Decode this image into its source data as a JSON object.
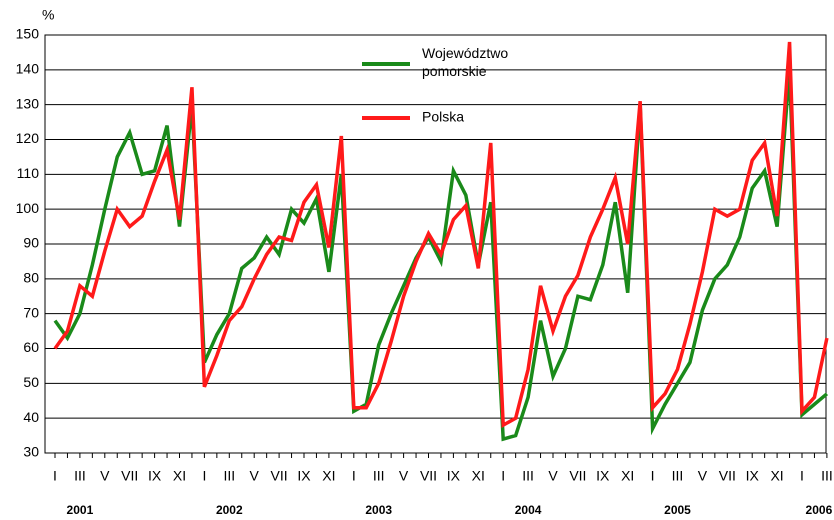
{
  "chart_data": {
    "type": "line",
    "y_unit": "%",
    "categories": [
      "I",
      null,
      "III",
      null,
      "V",
      null,
      "VII",
      null,
      "IX",
      null,
      "XI",
      null,
      "I",
      null,
      "III",
      null,
      "V",
      null,
      "VII",
      null,
      "IX",
      null,
      "XI",
      null,
      "I",
      null,
      "III",
      null,
      "V",
      null,
      "VII",
      null,
      "IX",
      null,
      "XI",
      null,
      "I",
      null,
      "III",
      null,
      "V",
      null,
      "VII",
      null,
      "IX",
      null,
      "XI",
      null,
      "I",
      null,
      "III",
      null,
      "V",
      null,
      "VII",
      null,
      "IX",
      null,
      "XI",
      null,
      "I",
      null,
      "III"
    ],
    "years": [
      "2001",
      "2002",
      "2003",
      "2004",
      "2005",
      "2006"
    ],
    "series": [
      {
        "name": "Województwo\npomorskie",
        "color": "#1a8a1a",
        "values": [
          68,
          63,
          70,
          84,
          100,
          115,
          122,
          110,
          111,
          124,
          95,
          130,
          56,
          64,
          70,
          83,
          86,
          92,
          87,
          100,
          96,
          103,
          82,
          110,
          42,
          44,
          61,
          70,
          78,
          86,
          92,
          85,
          111,
          104,
          84,
          102,
          34,
          35,
          46,
          68,
          52,
          60,
          75,
          74,
          84,
          102,
          76,
          130,
          37,
          44,
          50,
          56,
          71,
          80,
          84,
          92,
          106,
          111,
          95,
          140,
          41,
          44,
          47
        ]
      },
      {
        "name": "Polska",
        "color": "#ff1a1a",
        "values": [
          60,
          65,
          78,
          75,
          88,
          100,
          95,
          98,
          108,
          117,
          97,
          135,
          49,
          58,
          68,
          72,
          80,
          87,
          92,
          91,
          102,
          107,
          89,
          121,
          43,
          43,
          50,
          62,
          75,
          85,
          93,
          87,
          97,
          101,
          83,
          119,
          38,
          40,
          54,
          78,
          65,
          75,
          81,
          92,
          100,
          109,
          90,
          131,
          43,
          47,
          54,
          67,
          82,
          100,
          98,
          100,
          114,
          119,
          98,
          148,
          42,
          46,
          63
        ]
      }
    ],
    "ylim": [
      30,
      150
    ],
    "yticks": [
      30,
      40,
      50,
      60,
      70,
      80,
      90,
      100,
      110,
      120,
      130,
      140,
      150
    ],
    "grid": true
  }
}
